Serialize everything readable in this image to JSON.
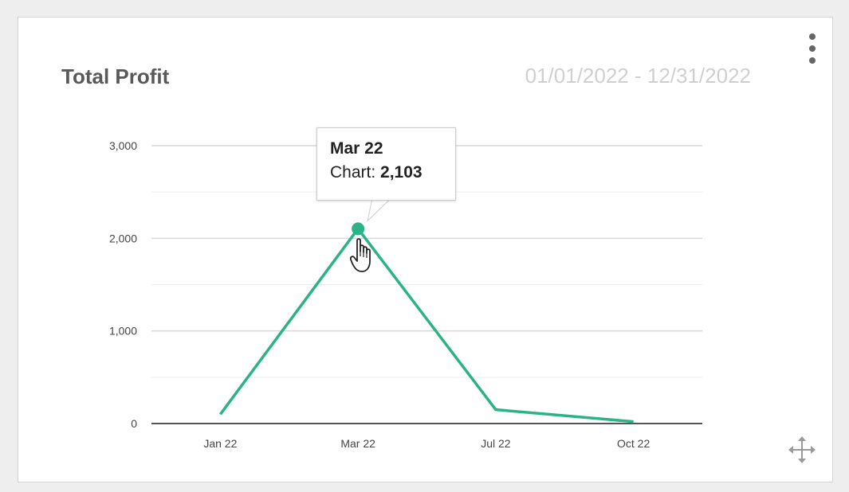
{
  "widget": {
    "title": "Total Profit",
    "date_range": "01/01/2022 - 12/31/2022",
    "menu_icon": "vertical-ellipsis-icon",
    "move_icon": "move-arrows-icon"
  },
  "tooltip": {
    "category": "Mar 22",
    "series_label": "Chart:",
    "value_text": "2,103"
  },
  "colors": {
    "line": "#2bb387",
    "title": "#595959",
    "date_range": "#cfcfcf",
    "grid": "#d9d9d9",
    "grid_minor": "#eeeeee",
    "axis": "#555555"
  },
  "chart_data": {
    "type": "line",
    "categories": [
      "Jan 22",
      "Mar 22",
      "Jul 22",
      "Oct 22"
    ],
    "series": [
      {
        "values": [
          100,
          2103,
          150,
          20
        ]
      }
    ],
    "ylim": [
      0,
      3000
    ],
    "yticks": [
      0,
      1000,
      2000,
      3000
    ],
    "ytick_labels": [
      "0",
      "1,000",
      "2,000",
      "3,000"
    ],
    "minor_gridlines": [
      500,
      1500,
      2500
    ],
    "grid": true,
    "title": "",
    "xlabel": "",
    "ylabel": "",
    "highlighted_index": 1
  }
}
